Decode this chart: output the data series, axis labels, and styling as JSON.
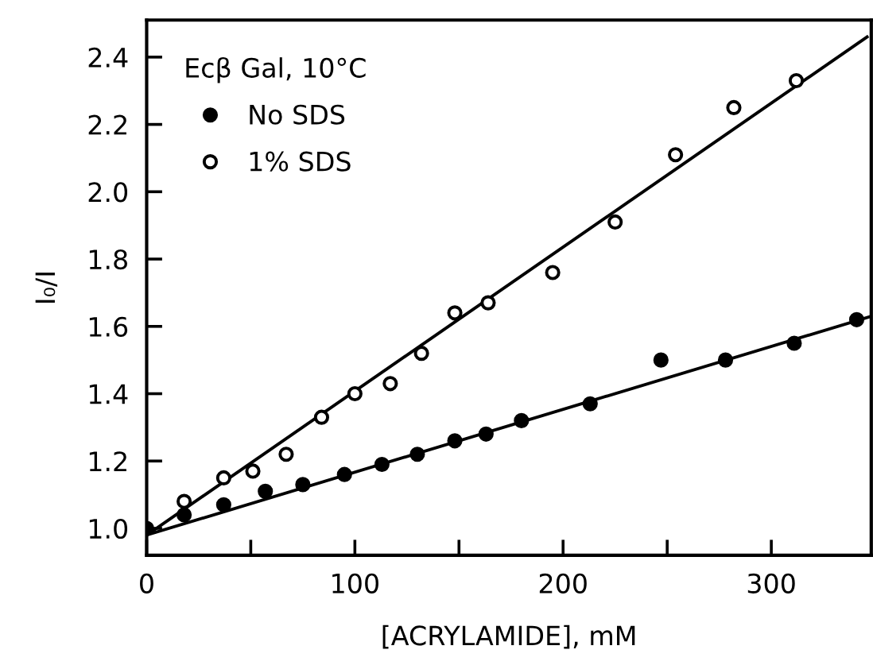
{
  "chart_data": {
    "type": "scatter",
    "legend_title": "Ecβ Gal, 10°C",
    "xlabel": "[ACRYLAMIDE], mM",
    "ylabel": "I₀/I",
    "xlim": [
      0,
      348
    ],
    "ylim": [
      0.92,
      2.51
    ],
    "xticks": [
      0,
      {
        "value": 50,
        "label": null
      },
      100,
      {
        "value": 150,
        "label": null
      },
      200,
      {
        "value": 250,
        "label": null
      },
      300
    ],
    "yticks": [
      {
        "value": 1.0,
        "label": "1.0"
      },
      {
        "value": 1.2,
        "label": "1.2"
      },
      {
        "value": 1.4,
        "label": "1.4"
      },
      {
        "value": 1.6,
        "label": "1.6"
      },
      {
        "value": 1.8,
        "label": "1.8"
      },
      {
        "value": 2.0,
        "label": "2.0"
      },
      {
        "value": 2.2,
        "label": "2.2"
      },
      {
        "value": 2.4,
        "label": "2.4"
      }
    ],
    "legend": "upper left",
    "grid": false,
    "series": [
      {
        "name": "No SDS",
        "marker": "circle",
        "color": "#000000",
        "x": [
          0,
          18,
          37,
          57,
          75,
          95,
          113,
          130,
          148,
          163,
          180,
          213,
          247,
          278,
          311,
          341
        ],
        "values": [
          1.0,
          1.04,
          1.07,
          1.11,
          1.13,
          1.16,
          1.19,
          1.22,
          1.26,
          1.28,
          1.32,
          1.37,
          1.5,
          1.5,
          1.55,
          1.62
        ]
      },
      {
        "name": "1% SDS",
        "marker": "circle",
        "color": "#ffffff",
        "x": [
          18,
          37,
          51,
          67,
          84,
          100,
          117,
          132,
          148,
          164,
          195,
          225,
          254,
          282,
          312
        ],
        "values": [
          1.08,
          1.15,
          1.17,
          1.22,
          1.33,
          1.4,
          1.43,
          1.52,
          1.64,
          1.67,
          1.76,
          1.91,
          2.11,
          2.25,
          2.33
        ]
      },
      {
        "type": "line",
        "color": "#000000",
        "x": [
          0,
          348
        ],
        "values": [
          0.98,
          1.63
        ]
      },
      {
        "type": "line",
        "color": "#000000",
        "x": [
          0,
          346
        ],
        "values": [
          0.98,
          2.46
        ]
      }
    ]
  }
}
